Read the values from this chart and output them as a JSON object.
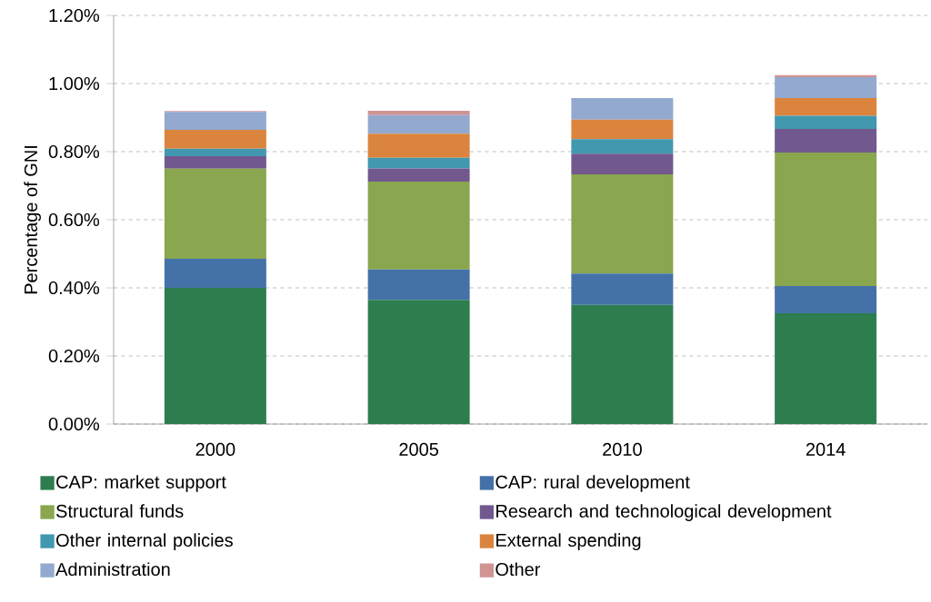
{
  "chart_data": {
    "type": "bar",
    "stacked": true,
    "ylabel": "Percentage of GNI",
    "categories": [
      "2000",
      "2005",
      "2010",
      "2014"
    ],
    "ylim": [
      0,
      1.2
    ],
    "yticks": [
      {
        "value": 0,
        "label": "0.00%"
      },
      {
        "value": 0.2,
        "label": "0.20%"
      },
      {
        "value": 0.4,
        "label": "0.40%"
      },
      {
        "value": 0.6,
        "label": "0.60%"
      },
      {
        "value": 0.8,
        "label": "0.80%"
      },
      {
        "value": 1.0,
        "label": "1.00%"
      },
      {
        "value": 1.2,
        "label": "1.20%"
      }
    ],
    "grid": "y",
    "legend": "bottom",
    "series": [
      {
        "name": "CAP: market support",
        "color": "#2e7d4f",
        "values": [
          0.4,
          0.365,
          0.35,
          0.325
        ]
      },
      {
        "name": "CAP: rural development",
        "color": "#4472a8",
        "values": [
          0.085,
          0.089,
          0.092,
          0.08
        ]
      },
      {
        "name": "Structural funds",
        "color": "#8aa64e",
        "values": [
          0.265,
          0.258,
          0.291,
          0.392
        ]
      },
      {
        "name": "Research and technological development",
        "color": "#71588f",
        "values": [
          0.037,
          0.039,
          0.061,
          0.07
        ]
      },
      {
        "name": "Other internal policies",
        "color": "#4198af",
        "values": [
          0.022,
          0.031,
          0.043,
          0.038
        ]
      },
      {
        "name": "External spending",
        "color": "#db843d",
        "values": [
          0.055,
          0.071,
          0.057,
          0.052
        ]
      },
      {
        "name": "Administration",
        "color": "#93a9cf",
        "values": [
          0.053,
          0.054,
          0.063,
          0.062
        ]
      },
      {
        "name": "Other",
        "color": "#d09493",
        "values": [
          0.002,
          0.013,
          0,
          0.006
        ]
      }
    ]
  }
}
